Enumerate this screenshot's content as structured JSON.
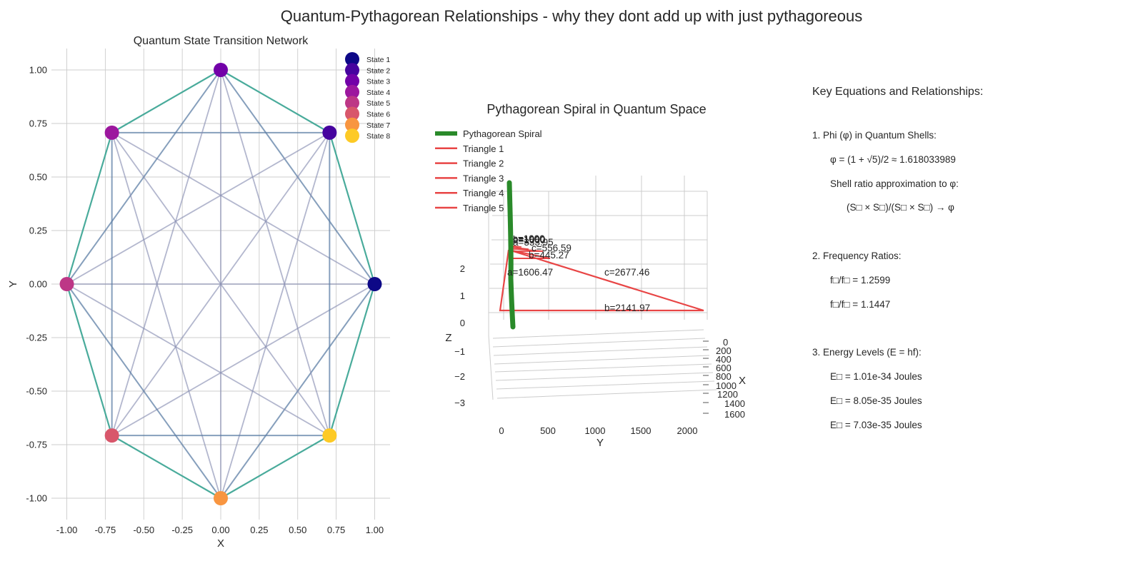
{
  "figure": {
    "title": "Quantum-Pythagorean Relationships - why they dont add up with just pythagoreous"
  },
  "chart_data": [
    {
      "type": "network",
      "title": "Quantum State Transition Network",
      "xlabel": "X",
      "ylabel": "Y",
      "xlim": [
        -1.1,
        1.1
      ],
      "ylim": [
        -1.1,
        1.1
      ],
      "xticks": [
        "-1.00",
        "-0.75",
        "-0.50",
        "-0.25",
        "0.00",
        "0.25",
        "0.50",
        "0.75",
        "1.00"
      ],
      "yticks": [
        "-1.00",
        "-0.75",
        "-0.50",
        "-0.25",
        "0.00",
        "0.25",
        "0.50",
        "0.75",
        "1.00"
      ],
      "grid": true,
      "legend_position": "top-right",
      "nodes": [
        {
          "name": "State 1",
          "x": 1.0,
          "y": 0.0,
          "color": "#0d0887"
        },
        {
          "name": "State 2",
          "x": 0.7071,
          "y": 0.7071,
          "color": "#46039f"
        },
        {
          "name": "State 3",
          "x": 0.0,
          "y": 1.0,
          "color": "#7201a8"
        },
        {
          "name": "State 4",
          "x": -0.7071,
          "y": 0.7071,
          "color": "#9c179e"
        },
        {
          "name": "State 5",
          "x": -1.0,
          "y": 0.0,
          "color": "#bd3786"
        },
        {
          "name": "State 6",
          "x": -0.7071,
          "y": -0.7071,
          "color": "#d8576b"
        },
        {
          "name": "State 7",
          "x": 0.0,
          "y": -1.0,
          "color": "#f89540"
        },
        {
          "name": "State 8",
          "x": 0.7071,
          "y": -0.7071,
          "color": "#fdca26"
        }
      ],
      "edge_colors": {
        "adjacent": "#3fa796",
        "square": "#5e7fa6",
        "other": "#8a90b4"
      }
    },
    {
      "type": "line3d",
      "title": "Pythagorean Spiral in Quantum Space",
      "xlabel": "X",
      "ylabel": "Y",
      "zlabel": "Z",
      "xticks": [
        "0",
        "200",
        "400",
        "600",
        "800",
        "1000",
        "1200",
        "1400",
        "1600"
      ],
      "yticks": [
        "0",
        "500",
        "1000",
        "1500",
        "2000"
      ],
      "zticks": [
        "2",
        "1",
        "0",
        "−1",
        "−2",
        "−3"
      ],
      "legend_position": "top-left",
      "series": [
        {
          "name": "Pythagorean Spiral",
          "color": "#2a8a2a"
        },
        {
          "name": "Triangle 1",
          "color": "#e84545"
        },
        {
          "name": "Triangle 2",
          "color": "#e84545"
        },
        {
          "name": "Triangle 3",
          "color": "#e84545"
        },
        {
          "name": "Triangle 4",
          "color": "#e84545"
        },
        {
          "name": "Triangle 5",
          "color": "#e84545"
        }
      ],
      "annotations": [
        {
          "text": "a=1606.47"
        },
        {
          "text": "c=2677.46"
        },
        {
          "text": "b=2141.97"
        },
        {
          "text": "b=445.27"
        },
        {
          "text": "c=556.59"
        },
        {
          "text": "a=333.95"
        },
        {
          "text": "a=1000"
        },
        {
          "text": "b=1000"
        },
        {
          "text": "c=1000"
        }
      ]
    }
  ],
  "equations": {
    "title": "Key Equations and Relationships:",
    "lines": [
      {
        "text": "1. Phi (φ) in Quantum Shells:",
        "indent": 0
      },
      {
        "text": "φ = (1 + √5)/2 ≈ 1.618033989",
        "indent": 1
      },
      {
        "text": "Shell ratio approximation to φ:",
        "indent": 1
      },
      {
        "text": "(S□ × S□)/(S□ × S□) → φ",
        "indent": 2
      },
      {
        "text": "",
        "indent": 0
      },
      {
        "text": "2. Frequency Ratios:",
        "indent": 0
      },
      {
        "text": "f□/f□ = 1.2599",
        "indent": 1
      },
      {
        "text": "f□/f□ = 1.1447",
        "indent": 1
      },
      {
        "text": "",
        "indent": 0
      },
      {
        "text": "3. Energy Levels (E = hf):",
        "indent": 0
      },
      {
        "text": "E□ = 1.01e-34 Joules",
        "indent": 1
      },
      {
        "text": "E□ = 8.05e-35 Joules",
        "indent": 1
      },
      {
        "text": "E□ = 7.03e-35 Joules",
        "indent": 1
      }
    ]
  }
}
